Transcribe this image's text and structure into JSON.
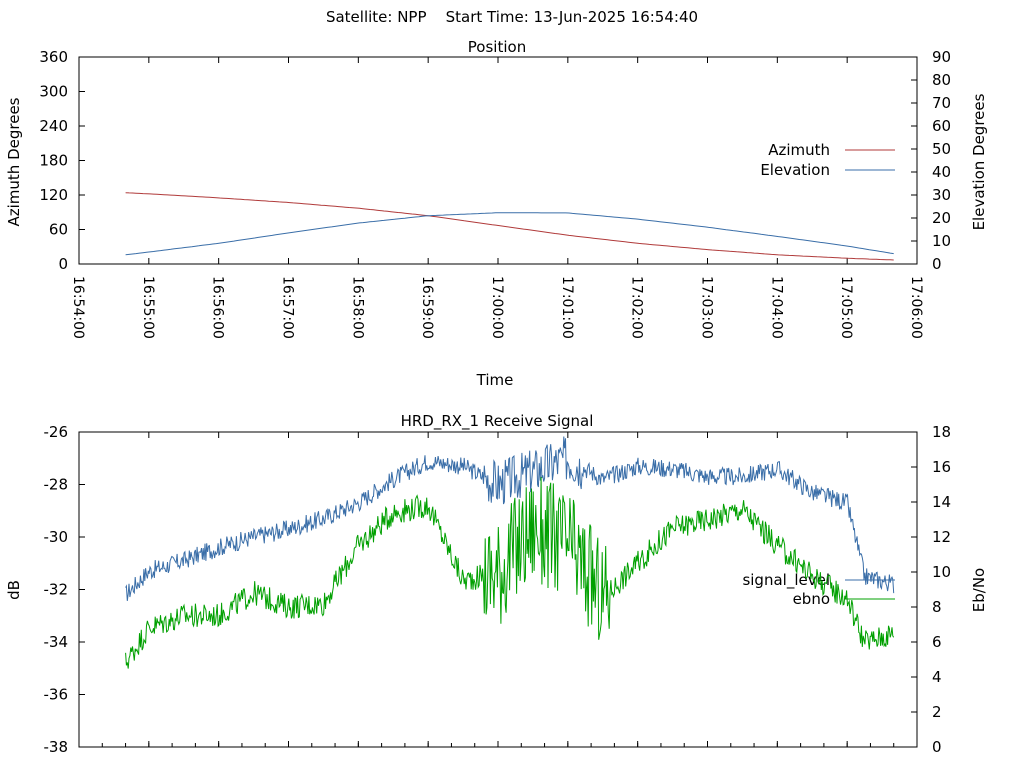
{
  "header": {
    "title": "Satellite: NPP    Start Time: 13-Jun-2025 16:54:40"
  },
  "chart_data": [
    {
      "type": "line",
      "title": "Position",
      "xlabel": "Time",
      "ylabel": "Azimuth Degrees",
      "y2label": "Elevation Degrees",
      "x_ticks": [
        "16:54:00",
        "16:55:00",
        "16:56:00",
        "16:57:00",
        "16:58:00",
        "16:59:00",
        "17:00:00",
        "17:01:00",
        "17:02:00",
        "17:03:00",
        "17:04:00",
        "17:05:00",
        "17:06:00"
      ],
      "xlim_minutes": [
        0,
        12
      ],
      "ylim": [
        0,
        360
      ],
      "y_ticks": [
        0,
        60,
        120,
        180,
        240,
        300,
        360
      ],
      "y2lim": [
        0,
        90
      ],
      "y2_ticks": [
        0,
        10,
        20,
        30,
        40,
        50,
        60,
        70,
        80,
        90
      ],
      "grid": false,
      "legend_position": "right",
      "series": [
        {
          "name": "Azimuth",
          "axis": "left",
          "color": "#b03a3a",
          "x": [
            "16:54:40",
            "16:55:00",
            "16:56:00",
            "16:57:00",
            "16:58:00",
            "16:59:00",
            "17:00:00",
            "17:01:00",
            "17:02:00",
            "17:03:00",
            "17:04:00",
            "17:05:00",
            "17:05:40"
          ],
          "values": [
            124,
            122,
            115,
            107,
            97,
            84,
            67,
            50,
            36,
            25,
            16,
            10,
            7
          ]
        },
        {
          "name": "Elevation",
          "axis": "right",
          "color": "#3a6ea8",
          "x": [
            "16:54:40",
            "16:55:00",
            "16:56:00",
            "16:57:00",
            "16:58:00",
            "16:59:00",
            "17:00:00",
            "17:01:00",
            "17:02:00",
            "17:03:00",
            "17:04:00",
            "17:05:00",
            "17:05:40"
          ],
          "values": [
            4,
            5.2,
            9,
            13.5,
            17.8,
            21,
            22.3,
            22.2,
            19.5,
            16,
            12,
            7.8,
            4.5
          ]
        }
      ]
    },
    {
      "type": "line",
      "title": "HRD_RX_1 Receive Signal",
      "ylabel": "dB",
      "y2label": "Eb/No",
      "xlim_minutes": [
        0,
        12
      ],
      "ylim": [
        -38,
        -26
      ],
      "y_ticks": [
        -38,
        -36,
        -34,
        -32,
        -30,
        -28,
        -26
      ],
      "y2lim": [
        0,
        18
      ],
      "y2_ticks": [
        0,
        2,
        4,
        6,
        8,
        10,
        12,
        14,
        16,
        18
      ],
      "grid": false,
      "legend_position": "right",
      "series": [
        {
          "name": "signal_level",
          "axis": "left",
          "color": "#3a6ea8",
          "x": [
            "16:54:40",
            "16:55:00",
            "16:55:30",
            "16:56:00",
            "16:56:30",
            "16:57:00",
            "16:57:30",
            "16:58:00",
            "16:58:30",
            "16:59:00",
            "16:59:30",
            "17:00:00",
            "17:00:30",
            "17:01:00",
            "17:01:30",
            "17:02:00",
            "17:02:30",
            "17:03:00",
            "17:03:30",
            "17:04:00",
            "17:04:30",
            "17:05:00",
            "17:05:15",
            "17:05:40"
          ],
          "values": [
            -32.2,
            -31.3,
            -30.9,
            -30.4,
            -30.0,
            -29.7,
            -29.3,
            -28.7,
            -27.8,
            -27.1,
            -27.3,
            -28.0,
            -27.5,
            -27.0,
            -27.8,
            -27.3,
            -27.4,
            -27.7,
            -27.7,
            -27.4,
            -28.3,
            -28.7,
            -31.5,
            -31.8
          ]
        },
        {
          "name": "ebno",
          "axis": "right",
          "color": "#00a000",
          "x": [
            "16:54:40",
            "16:55:00",
            "16:55:30",
            "16:56:00",
            "16:56:30",
            "16:57:00",
            "16:57:30",
            "16:58:00",
            "16:58:30",
            "16:59:00",
            "16:59:30",
            "17:00:00",
            "17:00:30",
            "17:01:00",
            "17:01:30",
            "17:02:00",
            "17:02:30",
            "17:03:00",
            "17:03:30",
            "17:04:00",
            "17:04:30",
            "17:05:00",
            "17:05:15",
            "17:05:40"
          ],
          "values": [
            4.8,
            6.8,
            7.5,
            7.5,
            8.8,
            8.0,
            8.2,
            11.5,
            13.4,
            13.8,
            9.5,
            10.0,
            12.5,
            11.5,
            8.5,
            10.5,
            12.5,
            13.0,
            13.6,
            11.5,
            9.8,
            8.5,
            6.0,
            6.5
          ]
        }
      ]
    }
  ]
}
